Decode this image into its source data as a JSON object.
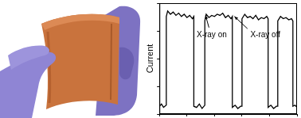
{
  "chart_data": {
    "type": "line",
    "y_label": "Current",
    "annotations": [
      "X-ray on",
      "X-ray off"
    ],
    "x": [
      0,
      1.5,
      3,
      5,
      5,
      6,
      8,
      10,
      12,
      14,
      16,
      18,
      20,
      22,
      24,
      25,
      25,
      27,
      29,
      31,
      33,
      33,
      34,
      36,
      38,
      40,
      42,
      44,
      46,
      48,
      50,
      52,
      53,
      53,
      55,
      57,
      59,
      60,
      60,
      62,
      64,
      66,
      68,
      70,
      72,
      74,
      76,
      78,
      79,
      79,
      81,
      83,
      85,
      86,
      86,
      88,
      90,
      92,
      94,
      96,
      97,
      97,
      98.5,
      100
    ],
    "values": [
      0.07,
      0.09,
      0.06,
      0.08,
      0.88,
      0.93,
      0.9,
      0.92,
      0.89,
      0.91,
      0.88,
      0.9,
      0.87,
      0.89,
      0.86,
      0.88,
      0.07,
      0.06,
      0.09,
      0.05,
      0.08,
      0.84,
      0.9,
      0.87,
      0.89,
      0.88,
      0.9,
      0.89,
      0.91,
      0.87,
      0.89,
      0.86,
      0.88,
      0.06,
      0.08,
      0.05,
      0.07,
      0.07,
      0.86,
      0.9,
      0.87,
      0.88,
      0.86,
      0.89,
      0.85,
      0.87,
      0.86,
      0.88,
      0.86,
      0.06,
      0.08,
      0.05,
      0.07,
      0.07,
      0.84,
      0.88,
      0.86,
      0.87,
      0.85,
      0.86,
      0.84,
      0.07,
      0.08,
      0.06
    ],
    "color": "#000000",
    "xlim": [
      0,
      100
    ],
    "xticks": [
      0,
      20,
      40,
      60,
      80,
      100
    ],
    "ylim": [
      0,
      1
    ],
    "yticks": [
      0,
      0.25,
      0.5,
      0.75,
      1
    ],
    "grid": false,
    "tick_labels": false
  }
}
